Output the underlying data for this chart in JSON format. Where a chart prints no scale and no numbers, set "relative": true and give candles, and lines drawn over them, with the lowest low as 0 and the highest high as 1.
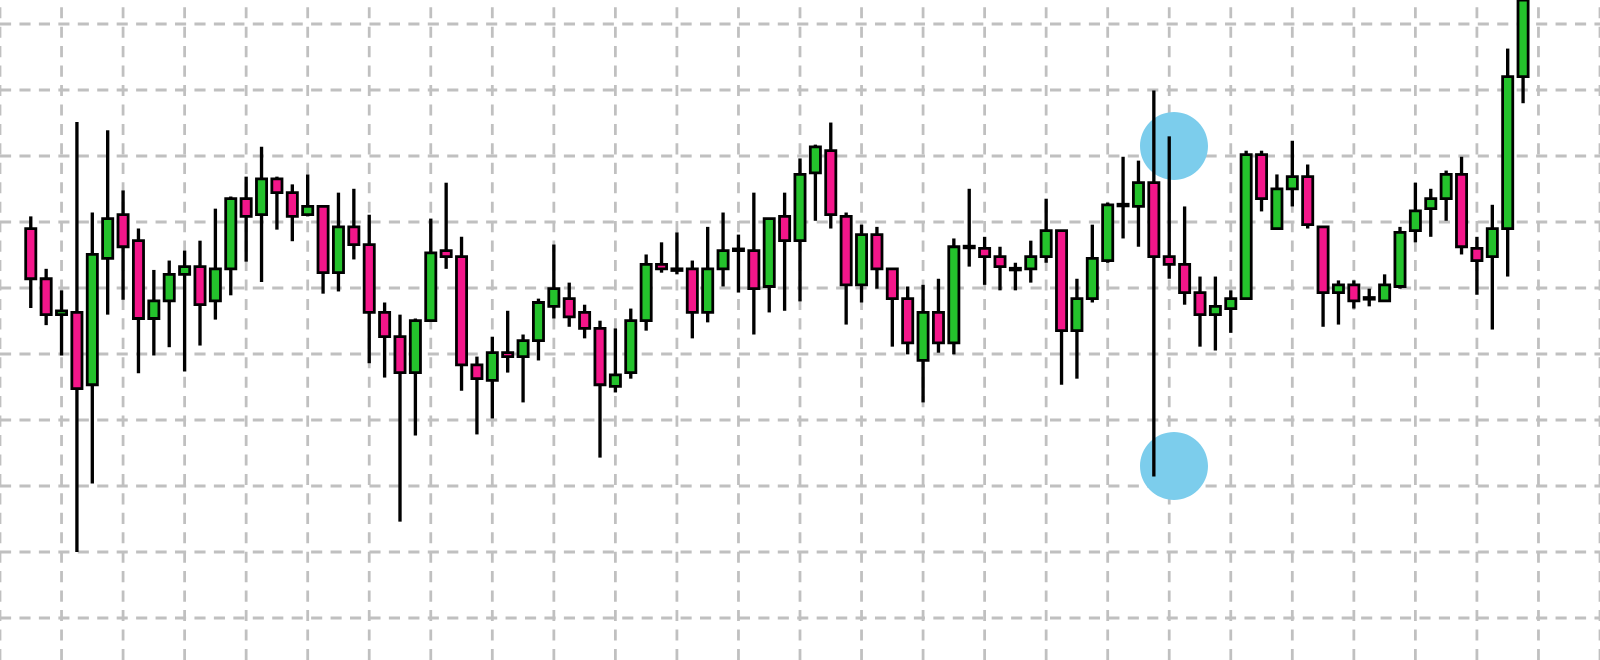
{
  "chart_data": {
    "type": "candlestick",
    "relative": true,
    "grid": true,
    "categories": [
      null,
      null,
      null,
      null,
      null,
      null,
      null,
      null,
      null,
      null,
      null,
      null,
      null,
      null,
      null,
      null,
      null,
      null,
      null,
      null,
      null,
      null,
      null,
      null,
      null,
      null,
      null,
      null,
      null,
      null,
      null,
      null,
      null,
      null,
      null,
      null,
      null,
      null,
      null,
      null,
      null,
      null,
      null,
      null,
      null,
      null,
      null,
      null,
      null,
      null,
      null,
      null,
      null,
      null,
      null,
      null,
      null,
      null,
      null,
      null,
      null,
      null,
      null,
      null,
      null,
      null,
      null,
      null,
      null,
      null,
      null,
      null,
      null,
      null,
      null,
      null,
      null,
      null,
      null,
      null,
      null,
      null,
      null,
      null,
      null,
      null,
      null,
      null,
      null,
      null,
      null,
      null,
      null,
      null,
      null,
      null,
      null,
      null
    ],
    "ohlc": [
      [
        0.586,
        0.608,
        0.442,
        0.495
      ],
      [
        0.495,
        0.513,
        0.411,
        0.43
      ],
      [
        0.43,
        0.474,
        0.356,
        0.437
      ],
      [
        0.434,
        0.779,
        0,
        0.296
      ],
      [
        0.303,
        0.615,
        0.124,
        0.539
      ],
      [
        0.532,
        0.764,
        0.43,
        0.604
      ],
      [
        0.611,
        0.655,
        0.457,
        0.553
      ],
      [
        0.564,
        0.586,
        0.324,
        0.423
      ],
      [
        0.423,
        0.511,
        0.356,
        0.455
      ],
      [
        0.455,
        0.528,
        0.371,
        0.503
      ],
      [
        0.503,
        0.546,
        0.327,
        0.517
      ],
      [
        0.517,
        0.564,
        0.374,
        0.448
      ],
      [
        0.455,
        0.622,
        0.421,
        0.513
      ],
      [
        0.513,
        0.644,
        0.465,
        0.64
      ],
      [
        0.64,
        0.68,
        0.526,
        0.608
      ],
      [
        0.611,
        0.734,
        0.489,
        0.676
      ],
      [
        0.676,
        0.68,
        0.584,
        0.651
      ],
      [
        0.651,
        0.666,
        0.563,
        0.608
      ],
      [
        0.611,
        0.684,
        0.608,
        0.626
      ],
      [
        0.626,
        0.626,
        0.468,
        0.506
      ],
      [
        0.506,
        0.651,
        0.472,
        0.589
      ],
      [
        0.589,
        0.658,
        0.53,
        0.557
      ],
      [
        0.557,
        0.611,
        0.342,
        0.434
      ],
      [
        0.434,
        0.452,
        0.316,
        0.39
      ],
      [
        0.39,
        0.43,
        0.055,
        0.325
      ],
      [
        0.325,
        0.423,
        0.211,
        0.419
      ],
      [
        0.419,
        0.604,
        0.419,
        0.542
      ],
      [
        0.546,
        0.669,
        0.513,
        0.535
      ],
      [
        0.535,
        0.571,
        0.292,
        0.339
      ],
      [
        0.339,
        0.354,
        0.213,
        0.314
      ],
      [
        0.311,
        0.39,
        0.242,
        0.361
      ],
      [
        0.361,
        0.437,
        0.325,
        0.354
      ],
      [
        0.354,
        0.394,
        0.271,
        0.383
      ],
      [
        0.383,
        0.459,
        0.347,
        0.452
      ],
      [
        0.445,
        0.557,
        0.423,
        0.477
      ],
      [
        0.459,
        0.488,
        0.408,
        0.426
      ],
      [
        0.434,
        0.448,
        0.387,
        0.405
      ],
      [
        0.405,
        0.419,
        0.171,
        0.303
      ],
      [
        0.3,
        0.405,
        0.289,
        0.321
      ],
      [
        0.325,
        0.441,
        0.314,
        0.419
      ],
      [
        0.419,
        0.539,
        0.401,
        0.521
      ],
      [
        0.521,
        0.561,
        0.506,
        0.513
      ],
      [
        0.51,
        0.579,
        0.503,
        0.51
      ],
      [
        0.513,
        0.528,
        0.387,
        0.434
      ],
      [
        0.434,
        0.589,
        0.416,
        0.513
      ],
      [
        0.513,
        0.615,
        0.481,
        0.546
      ],
      [
        0.546,
        0.575,
        0.47,
        0.546
      ],
      [
        0.546,
        0.651,
        0.394,
        0.477
      ],
      [
        0.481,
        0.604,
        0.434,
        0.604
      ],
      [
        0.608,
        0.651,
        0.437,
        0.564
      ],
      [
        0.564,
        0.713,
        0.454,
        0.684
      ],
      [
        0.687,
        0.738,
        0.6,
        0.734
      ],
      [
        0.727,
        0.778,
        0.586,
        0.611
      ],
      [
        0.608,
        0.615,
        0.412,
        0.484
      ],
      [
        0.484,
        0.593,
        0.452,
        0.575
      ],
      [
        0.575,
        0.589,
        0.477,
        0.513
      ],
      [
        0.513,
        0.513,
        0.372,
        0.459
      ],
      [
        0.459,
        0.481,
        0.358,
        0.379
      ],
      [
        0.347,
        0.484,
        0.271,
        0.434
      ],
      [
        0.434,
        0.495,
        0.361,
        0.379
      ],
      [
        0.379,
        0.568,
        0.358,
        0.553
      ],
      [
        0.551,
        0.658,
        0.517,
        0.551
      ],
      [
        0.55,
        0.571,
        0.484,
        0.535
      ],
      [
        0.535,
        0.553,
        0.474,
        0.517
      ],
      [
        0.511,
        0.524,
        0.474,
        0.511
      ],
      [
        0.513,
        0.564,
        0.488,
        0.535
      ],
      [
        0.535,
        0.64,
        0.524,
        0.582
      ],
      [
        0.582,
        0.582,
        0.303,
        0.401
      ],
      [
        0.401,
        0.495,
        0.314,
        0.459
      ],
      [
        0.459,
        0.593,
        0.452,
        0.532
      ],
      [
        0.528,
        0.633,
        0.524,
        0.629
      ],
      [
        0.627,
        0.716,
        0.568,
        0.627
      ],
      [
        0.626,
        0.709,
        0.553,
        0.669
      ],
      [
        0.669,
        0.836,
        0.137,
        0.535
      ],
      [
        0.535,
        0.753,
        0.495,
        0.521
      ],
      [
        0.521,
        0.626,
        0.448,
        0.47
      ],
      [
        0.47,
        0.499,
        0.372,
        0.43
      ],
      [
        0.43,
        0.499,
        0.365,
        0.445
      ],
      [
        0.441,
        0.474,
        0.397,
        0.459
      ],
      [
        0.459,
        0.727,
        0.459,
        0.72
      ],
      [
        0.72,
        0.727,
        0.617,
        0.64
      ],
      [
        0.586,
        0.684,
        0.586,
        0.658
      ],
      [
        0.658,
        0.745,
        0.626,
        0.68
      ],
      [
        0.68,
        0.702,
        0.586,
        0.593
      ],
      [
        0.589,
        0.589,
        0.408,
        0.47
      ],
      [
        0.47,
        0.492,
        0.412,
        0.484
      ],
      [
        0.484,
        0.492,
        0.441,
        0.455
      ],
      [
        0.458,
        0.477,
        0.445,
        0.458
      ],
      [
        0.455,
        0.503,
        0.455,
        0.484
      ],
      [
        0.481,
        0.589,
        0.477,
        0.579
      ],
      [
        0.582,
        0.669,
        0.561,
        0.618
      ],
      [
        0.622,
        0.658,
        0.571,
        0.64
      ],
      [
        0.64,
        0.691,
        0.6,
        0.684
      ],
      [
        0.684,
        0.716,
        0.539,
        0.553
      ],
      [
        0.55,
        0.571,
        0.466,
        0.528
      ],
      [
        0.535,
        0.629,
        0.403,
        0.586
      ],
      [
        0.586,
        0.912,
        0.499,
        0.861
      ],
      [
        0.861,
        1,
        0.813,
        1
      ]
    ],
    "colors": [
      "#f4168a",
      "#f4168a",
      "#24c22c",
      "#f4168a",
      "#24c22c",
      "#24c22c",
      "#f4168a",
      "#f4168a",
      "#24c22c",
      "#24c22c",
      "#24c22c",
      "#f4168a",
      "#24c22c",
      "#24c22c",
      "#f4168a",
      "#24c22c",
      "#f4168a",
      "#f4168a",
      "#24c22c",
      "#f4168a",
      "#24c22c",
      "#f4168a",
      "#f4168a",
      "#f4168a",
      "#f4168a",
      "#24c22c",
      "#24c22c",
      "#f4168a",
      "#f4168a",
      "#f4168a",
      "#24c22c",
      "#f4168a",
      "#24c22c",
      "#24c22c",
      "#24c22c",
      "#f4168a",
      "#f4168a",
      "#f4168a",
      "#24c22c",
      "#24c22c",
      "#24c22c",
      "#f4168a",
      "#24c22c",
      "#f4168a",
      "#24c22c",
      "#24c22c",
      "#24c22c",
      "#f4168a",
      "#24c22c",
      "#f4168a",
      "#24c22c",
      "#24c22c",
      "#f4168a",
      "#f4168a",
      "#24c22c",
      "#f4168a",
      "#f4168a",
      "#f4168a",
      "#24c22c",
      "#f4168a",
      "#24c22c",
      "#24c22c",
      "#f4168a",
      "#f4168a",
      "#24c22c",
      "#24c22c",
      "#24c22c",
      "#f4168a",
      "#24c22c",
      "#24c22c",
      "#24c22c",
      "#24c22c",
      "#24c22c",
      "#f4168a",
      "#f4168a",
      "#f4168a",
      "#f4168a",
      "#24c22c",
      "#24c22c",
      "#24c22c",
      "#f4168a",
      "#24c22c",
      "#24c22c",
      "#f4168a",
      "#f4168a",
      "#24c22c",
      "#f4168a",
      "#24c22c",
      "#24c22c",
      "#24c22c",
      "#24c22c",
      "#24c22c",
      "#24c22c",
      "#f4168a",
      "#f4168a",
      "#24c22c",
      "#24c22c",
      "#24c22c"
    ]
  }
}
